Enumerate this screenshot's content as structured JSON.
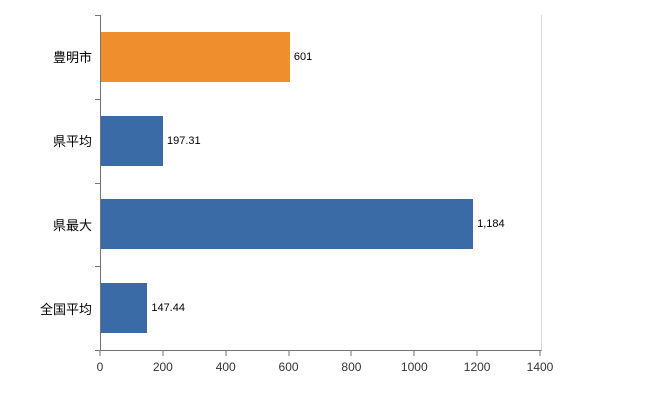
{
  "chart_data": {
    "type": "bar",
    "orientation": "horizontal",
    "title": "",
    "xlabel": "",
    "ylabel": "",
    "categories": [
      "豊明市",
      "県平均",
      "県最大",
      "全国平均"
    ],
    "values": [
      601,
      197.31,
      1184,
      147.44
    ],
    "value_labels": [
      "601",
      "197.31",
      "1,184",
      "147.44"
    ],
    "bar_colors": [
      "#ee8e2c",
      "#3a6ba6",
      "#3a6ba6",
      "#3a6ba6"
    ],
    "xlim": [
      0,
      1400
    ],
    "x_ticks": [
      "0",
      "200",
      "400",
      "600",
      "800",
      "1000",
      "1200",
      "1400"
    ],
    "grid": false,
    "legend": "none"
  },
  "colors": {
    "axis": "#737373",
    "plot_border_light": "#d9d9d9",
    "highlight_orange": "#ee8e2c",
    "series_blue": "#3a6ba6",
    "background": "#ffffff"
  }
}
